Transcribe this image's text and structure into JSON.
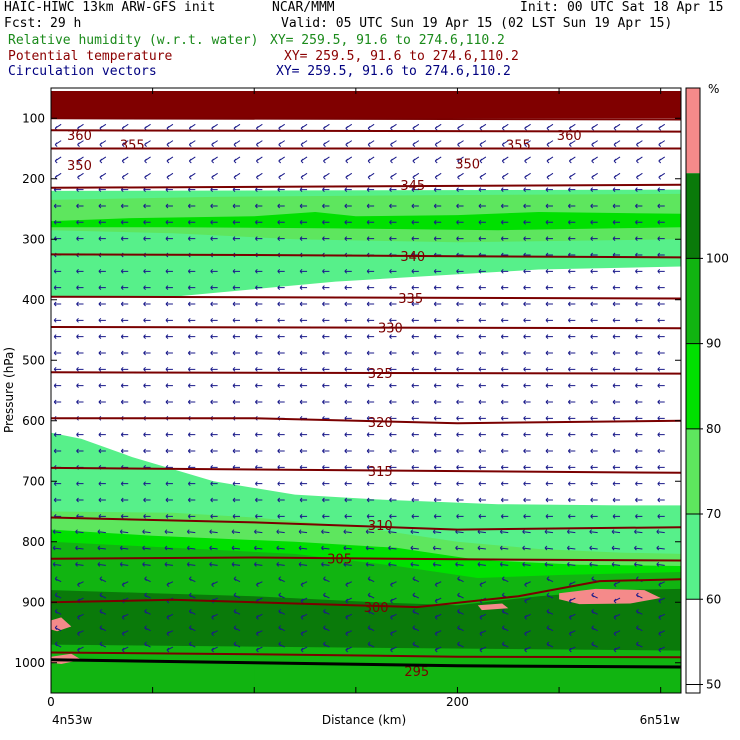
{
  "header": {
    "model": "HAIC-HIWC 13km ARW-GFS init",
    "org": "NCAR/MMM",
    "init": "Init: 00 UTC Sat 18 Apr 15",
    "fcst_label": "Fcst:",
    "fcst_value": "29 h",
    "valid": "Valid: 05 UTC Sun 19 Apr 15 (02 LST Sun 19 Apr 15)",
    "fields": [
      {
        "name": "Relative humidity (w.r.t. water)",
        "xy": "XY= 259.5, 91.6 to 274.6,110.2",
        "color": "#1a8a1a"
      },
      {
        "name": "Potential temperature",
        "xy": "XY= 259.5, 91.6 to 274.6,110.2",
        "color": "#8b0000"
      },
      {
        "name": "Circulation vectors",
        "xy": "XY= 259.5, 91.6 to 274.6,110.2",
        "color": "#000080"
      }
    ]
  },
  "chart_data": {
    "type": "heatmap",
    "ylabel": "Pressure (hPa)",
    "xlabel": "Distance (km)",
    "x_left_label": "4n53w",
    "x_right_label": "6n51w",
    "xlim": [
      0,
      310
    ],
    "ylim": [
      1050,
      50
    ],
    "x_ticks": [
      0,
      50,
      100,
      150,
      200,
      250,
      300
    ],
    "x_tick_labels": [
      {
        "v": 0,
        "label": "0"
      },
      {
        "v": 200,
        "label": "200"
      }
    ],
    "y_ticks": [
      100,
      200,
      300,
      400,
      500,
      600,
      700,
      800,
      900,
      1000
    ],
    "colorbar": {
      "unit": "%",
      "levels": [
        10,
        20,
        30,
        40,
        50,
        60,
        70,
        80,
        90,
        100
      ],
      "bands": [
        {
          "from": 0,
          "to": 50,
          "color": "#ffffff"
        },
        {
          "from": 50,
          "to": 60,
          "color": "#57f08a"
        },
        {
          "from": 60,
          "to": 70,
          "color": "#5ee65e"
        },
        {
          "from": 70,
          "to": 80,
          "color": "#00e000"
        },
        {
          "from": 80,
          "to": 90,
          "color": "#11b411"
        },
        {
          "from": 90,
          "to": 100,
          "color": "#0a7a0a"
        },
        {
          "from": 100,
          "to": 110,
          "color": "#f58a8a"
        },
        {
          "from": 110,
          "to": 120,
          "color": "#800000"
        }
      ]
    },
    "rh_regions": [
      {
        "rh": 115,
        "poly": [
          [
            0,
            55
          ],
          [
            310,
            55
          ],
          [
            310,
            100
          ],
          [
            0,
            100
          ]
        ]
      },
      {
        "rh": 55,
        "poly": [
          [
            0,
            220
          ],
          [
            310,
            218
          ],
          [
            310,
            345
          ],
          [
            240,
            350
          ],
          [
            140,
            370
          ],
          [
            60,
            395
          ],
          [
            0,
            395
          ]
        ]
      },
      {
        "rh": 65,
        "poly": [
          [
            0,
            235
          ],
          [
            80,
            230
          ],
          [
            150,
            228
          ],
          [
            250,
            226
          ],
          [
            310,
            225
          ],
          [
            310,
            300
          ],
          [
            200,
            305
          ],
          [
            120,
            300
          ],
          [
            60,
            290
          ],
          [
            0,
            285
          ]
        ]
      },
      {
        "rh": 75,
        "poly": [
          [
            0,
            270
          ],
          [
            40,
            265
          ],
          [
            100,
            262
          ],
          [
            130,
            255
          ],
          [
            150,
            262
          ],
          [
            200,
            260
          ],
          [
            240,
            255
          ],
          [
            310,
            258
          ],
          [
            310,
            280
          ],
          [
            220,
            285
          ],
          [
            140,
            282
          ],
          [
            60,
            280
          ],
          [
            0,
            280
          ]
        ]
      },
      {
        "rh": 55,
        "poly": [
          [
            0,
            620
          ],
          [
            15,
            630
          ],
          [
            40,
            660
          ],
          [
            80,
            700
          ],
          [
            120,
            722
          ],
          [
            160,
            730
          ],
          [
            220,
            738
          ],
          [
            280,
            740
          ],
          [
            310,
            740
          ],
          [
            310,
            1050
          ],
          [
            0,
            1050
          ]
        ]
      },
      {
        "rh": 65,
        "poly": [
          [
            0,
            750
          ],
          [
            60,
            752
          ],
          [
            100,
            760
          ],
          [
            150,
            775
          ],
          [
            200,
            800
          ],
          [
            240,
            812
          ],
          [
            280,
            818
          ],
          [
            310,
            820
          ],
          [
            310,
            1050
          ],
          [
            0,
            1050
          ]
        ]
      },
      {
        "rh": 75,
        "poly": [
          [
            0,
            780
          ],
          [
            50,
            790
          ],
          [
            120,
            800
          ],
          [
            170,
            810
          ],
          [
            210,
            830
          ],
          [
            260,
            838
          ],
          [
            310,
            840
          ],
          [
            310,
            1050
          ],
          [
            0,
            1050
          ]
        ]
      },
      {
        "rh": 85,
        "poly": [
          [
            0,
            800
          ],
          [
            60,
            810
          ],
          [
            120,
            820
          ],
          [
            170,
            840
          ],
          [
            210,
            860
          ],
          [
            250,
            855
          ],
          [
            310,
            850
          ],
          [
            310,
            1050
          ],
          [
            0,
            1050
          ]
        ]
      },
      {
        "rh": 95,
        "poly": [
          [
            0,
            880
          ],
          [
            50,
            885
          ],
          [
            100,
            890
          ],
          [
            160,
            900
          ],
          [
            200,
            905
          ],
          [
            240,
            890
          ],
          [
            280,
            880
          ],
          [
            310,
            878
          ],
          [
            310,
            980
          ],
          [
            150,
            975
          ],
          [
            0,
            970
          ]
        ]
      },
      {
        "rh": 105,
        "poly": [
          [
            0,
            930
          ],
          [
            5,
            925
          ],
          [
            10,
            940
          ],
          [
            3,
            948
          ],
          [
            0,
            945
          ]
        ]
      },
      {
        "rh": 105,
        "poly": [
          [
            0,
            990
          ],
          [
            10,
            985
          ],
          [
            15,
            995
          ],
          [
            5,
            1002
          ],
          [
            0,
            1000
          ]
        ]
      },
      {
        "rh": 105,
        "poly": [
          [
            250,
            885
          ],
          [
            268,
            878
          ],
          [
            292,
            880
          ],
          [
            300,
            893
          ],
          [
            285,
            902
          ],
          [
            260,
            903
          ],
          [
            250,
            895
          ]
        ]
      },
      {
        "rh": 105,
        "poly": [
          [
            210,
            905
          ],
          [
            222,
            902
          ],
          [
            225,
            910
          ],
          [
            212,
            913
          ]
        ]
      },
      {
        "rh": 85,
        "poly": [
          [
            100,
            990
          ],
          [
            200,
            993
          ],
          [
            310,
            992
          ],
          [
            310,
            1050
          ],
          [
            100,
            1050
          ]
        ]
      }
    ],
    "theta_contours": [
      {
        "level": 360,
        "points": [
          [
            0,
            100
          ],
          [
            310,
            102
          ]
        ],
        "label_at": [
          [
            14,
            128
          ],
          [
            255,
            128
          ]
        ]
      },
      {
        "level": 355,
        "points": [
          [
            0,
            120
          ],
          [
            310,
            122
          ]
        ],
        "label_at": [
          [
            40,
            143
          ],
          [
            230,
            143
          ]
        ]
      },
      {
        "level": 350,
        "points": [
          [
            0,
            150
          ],
          [
            310,
            150
          ]
        ],
        "label_at": [
          [
            14,
            177
          ],
          [
            205,
            175
          ]
        ]
      },
      {
        "level": 345,
        "points": [
          [
            0,
            215
          ],
          [
            310,
            210
          ]
        ],
        "label_at": [
          [
            178,
            210
          ]
        ]
      },
      {
        "level": 340,
        "points": [
          [
            0,
            325
          ],
          [
            100,
            326
          ],
          [
            200,
            328
          ],
          [
            310,
            330
          ]
        ],
        "label_at": [
          [
            178,
            328
          ]
        ]
      },
      {
        "level": 335,
        "points": [
          [
            0,
            395
          ],
          [
            310,
            398
          ]
        ],
        "label_at": [
          [
            177,
            397
          ]
        ]
      },
      {
        "level": 330,
        "points": [
          [
            0,
            445
          ],
          [
            310,
            447
          ]
        ],
        "label_at": [
          [
            167,
            446
          ]
        ]
      },
      {
        "level": 325,
        "points": [
          [
            0,
            520
          ],
          [
            310,
            522
          ]
        ],
        "label_at": [
          [
            162,
            521
          ]
        ]
      },
      {
        "level": 320,
        "points": [
          [
            0,
            596
          ],
          [
            100,
            596
          ],
          [
            200,
            604
          ],
          [
            310,
            600
          ]
        ],
        "label_at": [
          [
            162,
            602
          ]
        ]
      },
      {
        "level": 315,
        "points": [
          [
            0,
            678
          ],
          [
            310,
            686
          ]
        ],
        "label_at": [
          [
            162,
            683
          ]
        ]
      },
      {
        "level": 310,
        "points": [
          [
            0,
            760
          ],
          [
            100,
            768
          ],
          [
            200,
            780
          ],
          [
            310,
            776
          ]
        ],
        "label_at": [
          [
            162,
            772
          ]
        ]
      },
      {
        "level": 305,
        "points": [
          [
            0,
            828
          ],
          [
            100,
            826
          ],
          [
            200,
            829
          ],
          [
            310,
            831
          ]
        ],
        "label_at": [
          [
            142,
            828
          ]
        ]
      },
      {
        "level": 300,
        "points": [
          [
            0,
            900
          ],
          [
            60,
            896
          ],
          [
            120,
            902
          ],
          [
            180,
            908
          ],
          [
            230,
            890
          ],
          [
            270,
            865
          ],
          [
            310,
            862
          ]
        ],
        "label_at": [
          [
            160,
            908
          ]
        ]
      },
      {
        "level": 295,
        "points": [
          [
            0,
            983
          ],
          [
            100,
            986
          ],
          [
            200,
            990
          ],
          [
            310,
            991
          ]
        ],
        "label_at": [
          [
            180,
            1014
          ]
        ]
      }
    ],
    "terrain": [
      [
        0,
        995
      ],
      [
        100,
        1000
      ],
      [
        200,
        1005
      ],
      [
        310,
        1007
      ]
    ]
  }
}
